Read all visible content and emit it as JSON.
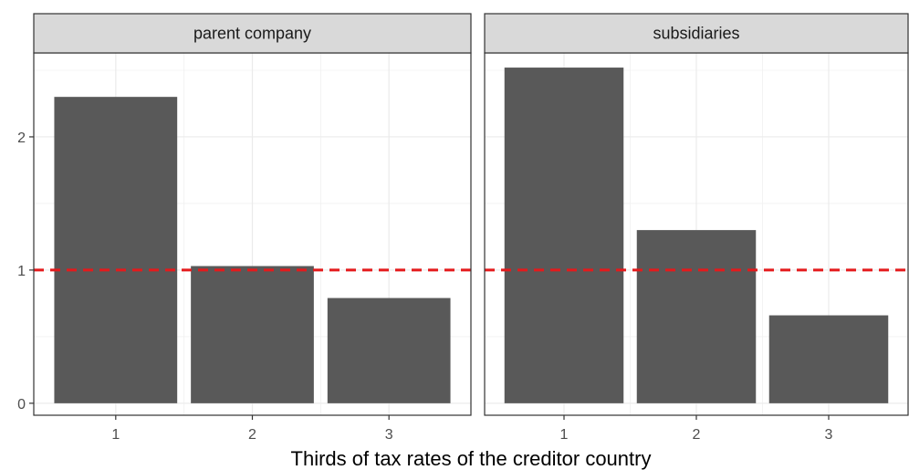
{
  "chart_data": {
    "type": "bar",
    "xlabel": "Thirds of tax rates of the creditor country",
    "ylabel": "",
    "ylim": [
      -0.09,
      2.63
    ],
    "y_ticks": [
      0,
      1,
      2
    ],
    "reference_line": {
      "y": 1,
      "style": "dashed",
      "color": "#e41a1c"
    },
    "categories": [
      "1",
      "2",
      "3"
    ],
    "bar_color": "#595959",
    "grid": true,
    "panels": [
      {
        "name": "parent company",
        "values": [
          2.3,
          1.03,
          0.79
        ]
      },
      {
        "name": "subsidiaries",
        "values": [
          2.52,
          1.3,
          0.66
        ]
      }
    ]
  }
}
